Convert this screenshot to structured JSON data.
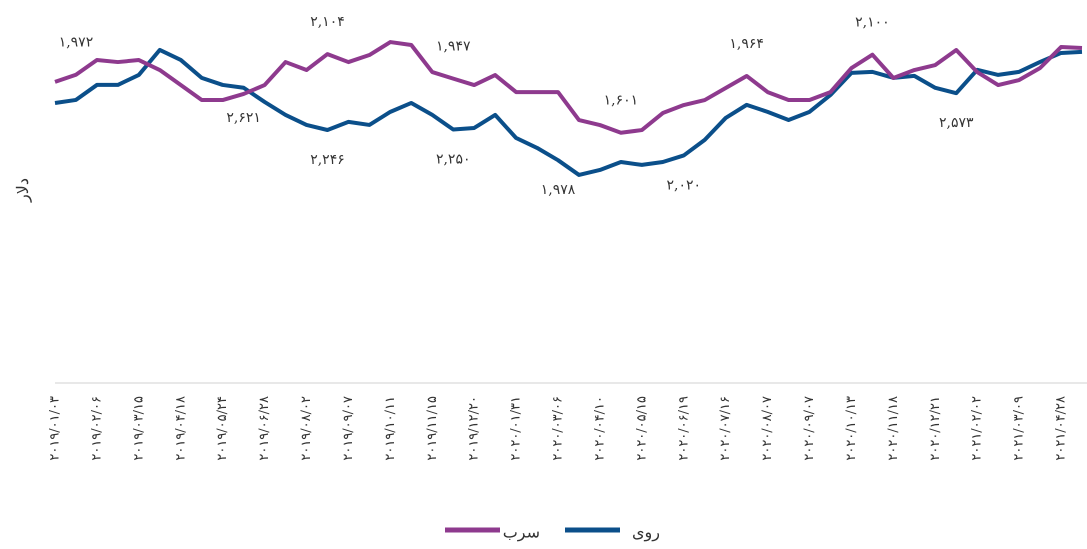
{
  "chart_data": {
    "type": "line",
    "y_label": "دلار",
    "categories": [
      "۲۰۱۹/۰۱/۰۳",
      null,
      "۲۰۱۹/۰۲/۰۶",
      null,
      "۲۰۱۹/۰۳/۱۵",
      null,
      "۲۰۱۹/۰۴/۱۸",
      null,
      "۲۰۱۹/۰۵/۲۴",
      null,
      "۲۰۱۹/۰۶/۲۸",
      null,
      "۲۰۱۹/۰۸/۰۲",
      null,
      "۲۰۱۹/۰۹/۰۷",
      null,
      "۲۰۱۹/۱۰/۱۱",
      null,
      "۲۰۱۹/۱۱/۱۵",
      null,
      "۲۰۱۹/۱۲/۲۰",
      null,
      "۲۰۲۰/۰۱/۳۱",
      null,
      "۲۰۲۰/۰۳/۰۶",
      null,
      "۲۰۲۰/۰۴/۱۰",
      null,
      "۲۰۲۰/۰۵/۱۵",
      null,
      "۲۰۲۰/۰۶/۱۹",
      null,
      "۲۰۲۰/۰۷/۱۶",
      null,
      "۲۰۲۰/۰۸/۰۷",
      null,
      "۲۰۲۰/۰۹/۰۷",
      null,
      "۲۰۲۰/۱۰/۱۳",
      null,
      "۲۰۲۰/۱۱/۱۸",
      null,
      "۲۰۲۰/۱۲/۲۱",
      null,
      "۲۰۲۱/۰۲/۰۲",
      null,
      "۲۰۲۱/۰۳/۰۹",
      null,
      "۲۰۲۱/۰۴/۲۸",
      null
    ],
    "series": [
      {
        "name": "روی",
        "color": "#0b4f8a",
        "axis": "y2",
        "values": [
          2486,
          2513,
          2646,
          2646,
          2735,
          2957,
          2868,
          2709,
          2646,
          2621,
          2495,
          2380,
          2291,
          2246,
          2318,
          2291,
          2407,
          2486,
          2380,
          2250,
          2264,
          2380,
          2175,
          2087,
          1978,
          1847,
          1891,
          1962,
          1936,
          1962,
          2020,
          2158,
          2353,
          2469,
          2407,
          2335,
          2407,
          2557,
          2753,
          2762,
          2709,
          2726,
          2620,
          2573,
          2780,
          2735,
          2762,
          2850,
          2930,
          2939
        ],
        "value_labels": [
          null,
          null,
          null,
          null,
          null,
          null,
          null,
          null,
          null,
          "۲,۶۲۱",
          null,
          null,
          null,
          "۲,۲۴۶",
          null,
          null,
          null,
          null,
          null,
          "۲,۲۵۰",
          null,
          null,
          null,
          null,
          "۱,۹۷۸",
          null,
          null,
          null,
          null,
          null,
          "۲,۰۲۰",
          null,
          null,
          null,
          null,
          null,
          null,
          null,
          null,
          null,
          null,
          null,
          null,
          "۲,۵۷۳",
          null,
          null,
          null,
          null,
          null,
          null
        ]
      },
      {
        "name": "سرب",
        "color": "#8e3a8e",
        "values": [
          1926,
          1972,
          2066,
          2053,
          2066,
          2002,
          1906,
          1810,
          1810,
          1849,
          1906,
          2053,
          2002,
          2104,
          2053,
          2098,
          2181,
          2162,
          1989,
          1947,
          1906,
          1970,
          1861,
          1861,
          1861,
          1682,
          1650,
          1601,
          1618,
          1727,
          1778,
          1810,
          1887,
          1964,
          1861,
          1810,
          1810,
          1861,
          2015,
          2100,
          1951,
          2002,
          2034,
          2130,
          1989,
          1906,
          1938,
          2015,
          2149,
          2143
        ],
        "value_labels": [
          null,
          "۱,۹۷۲",
          null,
          null,
          null,
          null,
          null,
          null,
          null,
          null,
          null,
          null,
          null,
          "۲,۱۰۴",
          null,
          null,
          null,
          null,
          null,
          "۱,۹۴۷",
          null,
          null,
          null,
          null,
          null,
          null,
          null,
          "۱,۶۰۱",
          null,
          null,
          null,
          null,
          null,
          "۱,۹۶۴",
          null,
          null,
          null,
          null,
          null,
          "۲,۱۰۰",
          null,
          null,
          null,
          null,
          null,
          null,
          null,
          null,
          null,
          null
        ]
      }
    ],
    "ylim": [
      0,
      2450
    ],
    "y2lim": [
      0,
      3400
    ],
    "grid": false,
    "legend": "bottom"
  }
}
